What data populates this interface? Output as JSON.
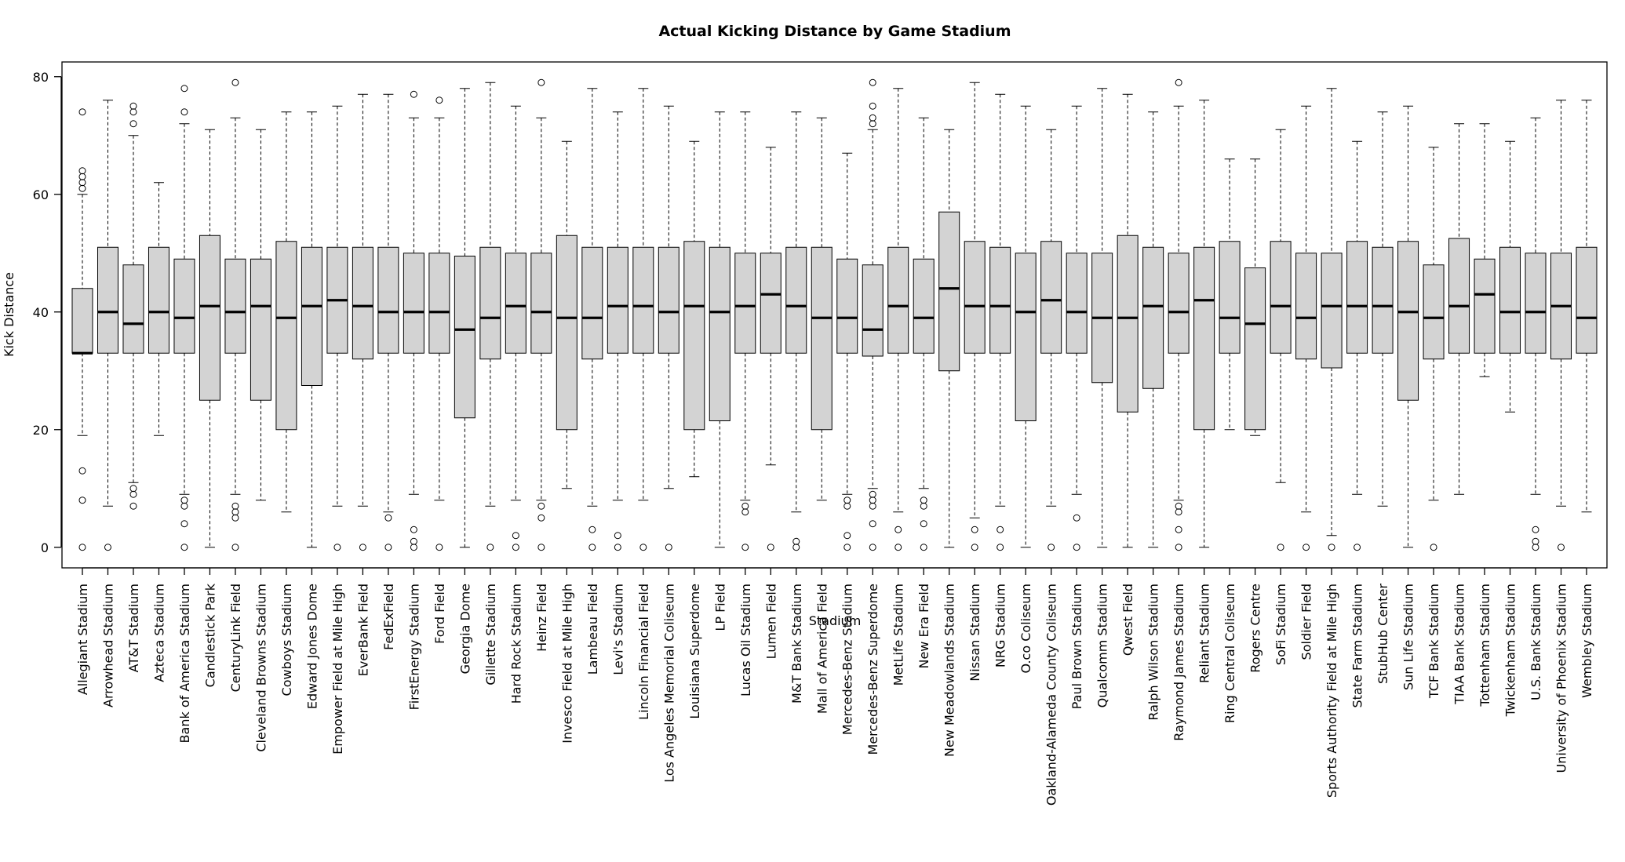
{
  "chart_data": {
    "type": "boxplot",
    "title": "Actual Kicking Distance by Game Stadium",
    "xlabel": "Stadium",
    "ylabel": "Kick Distance",
    "ylim": [
      -3.5,
      82.5
    ],
    "yticks": [
      0,
      20,
      40,
      60,
      80
    ],
    "grid": false,
    "box_fill": "#d3d3d3",
    "categories": [
      "Allegiant Stadium",
      "Arrowhead Stadium",
      "AT&T Stadium",
      "Azteca Stadium",
      "Bank of America Stadium",
      "Candlestick Park",
      "CenturyLink Field",
      "Cleveland Browns Stadium",
      "Cowboys Stadium",
      "Edward Jones Dome",
      "Empower Field at Mile High",
      "EverBank Field",
      "FedExField",
      "FirstEnergy Stadium",
      "Ford Field",
      "Georgia Dome",
      "Gillette Stadium",
      "Hard Rock Stadium",
      "Heinz Field",
      "Invesco Field at Mile High",
      "Lambeau Field",
      "Levi's Stadium",
      "Lincoln Financial Field",
      "Los Angeles Memorial Coliseum",
      "Louisiana Superdome",
      "LP Field",
      "Lucas Oil Stadium",
      "Lumen Field",
      "M&T Bank Stadium",
      "Mall of America Field",
      "Mercedes-Benz Stadium",
      "Mercedes-Benz Superdome",
      "MetLife Stadium",
      "New Era Field",
      "New Meadowlands Stadium",
      "Nissan Stadium",
      "NRG Stadium",
      "O.co Coliseum",
      "Oakland-Alameda County Coliseum",
      "Paul Brown Stadium",
      "Qualcomm Stadium",
      "Qwest Field",
      "Ralph Wilson Stadium",
      "Raymond James Stadium",
      "Reliant Stadium",
      "Ring Central Coliseum",
      "Rogers Centre",
      "SoFi Stadium",
      "Soldier Field",
      "Sports Authority Field at Mile High",
      "State Farm Stadium",
      "StubHub Center",
      "Sun Life Stadium",
      "TCF Bank Stadium",
      "TIAA Bank Stadium",
      "Tottenham Stadium",
      "Twickenham Stadium",
      "U.S. Bank Stadium",
      "University of Phoenix Stadium",
      "Wembley Stadium"
    ],
    "boxes": [
      {
        "lw": 19,
        "q1": 33,
        "med": 33,
        "q3": 44,
        "uw": 60,
        "out": [
          0,
          8,
          13,
          61,
          62,
          63,
          64,
          74
        ]
      },
      {
        "lw": 7,
        "q1": 33,
        "med": 40,
        "q3": 51,
        "uw": 76,
        "out": [
          0
        ]
      },
      {
        "lw": 11,
        "q1": 33,
        "med": 38,
        "q3": 48,
        "uw": 70,
        "out": [
          7,
          9,
          10,
          72,
          74,
          75
        ]
      },
      {
        "lw": 19,
        "q1": 33,
        "med": 40,
        "q3": 51,
        "uw": 62,
        "out": []
      },
      {
        "lw": 9,
        "q1": 33,
        "med": 39,
        "q3": 49,
        "uw": 72,
        "out": [
          0,
          4,
          7,
          8,
          74,
          78
        ]
      },
      {
        "lw": 0,
        "q1": 25,
        "med": 41,
        "q3": 53,
        "uw": 71,
        "out": []
      },
      {
        "lw": 9,
        "q1": 33,
        "med": 40,
        "q3": 49,
        "uw": 73,
        "out": [
          0,
          5,
          6,
          7,
          79
        ]
      },
      {
        "lw": 8,
        "q1": 25,
        "med": 41,
        "q3": 49,
        "uw": 71,
        "out": []
      },
      {
        "lw": 6,
        "q1": 20,
        "med": 39,
        "q3": 52,
        "uw": 74,
        "out": []
      },
      {
        "lw": 0,
        "q1": 27.5,
        "med": 41,
        "q3": 51,
        "uw": 74,
        "out": []
      },
      {
        "lw": 7,
        "q1": 33,
        "med": 42,
        "q3": 51,
        "uw": 75,
        "out": [
          0
        ]
      },
      {
        "lw": 7,
        "q1": 32,
        "med": 41,
        "q3": 51,
        "uw": 77,
        "out": [
          0
        ]
      },
      {
        "lw": 6,
        "q1": 33,
        "med": 40,
        "q3": 51,
        "uw": 77,
        "out": [
          0,
          5
        ]
      },
      {
        "lw": 9,
        "q1": 33,
        "med": 40,
        "q3": 50,
        "uw": 73,
        "out": [
          0,
          1,
          3,
          77
        ]
      },
      {
        "lw": 8,
        "q1": 33,
        "med": 40,
        "q3": 50,
        "uw": 73,
        "out": [
          0,
          76
        ]
      },
      {
        "lw": 0,
        "q1": 22,
        "med": 37,
        "q3": 49.5,
        "uw": 78,
        "out": []
      },
      {
        "lw": 7,
        "q1": 32,
        "med": 39,
        "q3": 51,
        "uw": 79,
        "out": [
          0
        ]
      },
      {
        "lw": 8,
        "q1": 33,
        "med": 41,
        "q3": 50,
        "uw": 75,
        "out": [
          0,
          2
        ]
      },
      {
        "lw": 8,
        "q1": 33,
        "med": 40,
        "q3": 50,
        "uw": 73,
        "out": [
          0,
          5,
          7,
          79
        ]
      },
      {
        "lw": 10,
        "q1": 20,
        "med": 39,
        "q3": 53,
        "uw": 69,
        "out": []
      },
      {
        "lw": 7,
        "q1": 32,
        "med": 39,
        "q3": 51,
        "uw": 78,
        "out": [
          0,
          3
        ]
      },
      {
        "lw": 8,
        "q1": 33,
        "med": 41,
        "q3": 51,
        "uw": 74,
        "out": [
          0,
          2
        ]
      },
      {
        "lw": 8,
        "q1": 33,
        "med": 41,
        "q3": 51,
        "uw": 78,
        "out": [
          0
        ]
      },
      {
        "lw": 10,
        "q1": 33,
        "med": 40,
        "q3": 51,
        "uw": 75,
        "out": [
          0
        ]
      },
      {
        "lw": 12,
        "q1": 20,
        "med": 41,
        "q3": 52,
        "uw": 69,
        "out": []
      },
      {
        "lw": 0,
        "q1": 21.5,
        "med": 40,
        "q3": 51,
        "uw": 74,
        "out": []
      },
      {
        "lw": 8,
        "q1": 33,
        "med": 41,
        "q3": 50,
        "uw": 74,
        "out": [
          0,
          6,
          7
        ]
      },
      {
        "lw": 14,
        "q1": 33,
        "med": 43,
        "q3": 50,
        "uw": 68,
        "out": [
          0
        ]
      },
      {
        "lw": 6,
        "q1": 33,
        "med": 41,
        "q3": 51,
        "uw": 74,
        "out": [
          0,
          1
        ]
      },
      {
        "lw": 8,
        "q1": 20,
        "med": 39,
        "q3": 51,
        "uw": 73,
        "out": []
      },
      {
        "lw": 9,
        "q1": 33,
        "med": 39,
        "q3": 49,
        "uw": 67,
        "out": [
          0,
          2,
          7,
          8
        ]
      },
      {
        "lw": 10,
        "q1": 32.5,
        "med": 37,
        "q3": 48,
        "uw": 71,
        "out": [
          0,
          4,
          7,
          8,
          9,
          72,
          73,
          75,
          79
        ]
      },
      {
        "lw": 6,
        "q1": 33,
        "med": 41,
        "q3": 51,
        "uw": 78,
        "out": [
          0,
          3
        ]
      },
      {
        "lw": 10,
        "q1": 33,
        "med": 39,
        "q3": 49,
        "uw": 73,
        "out": [
          0,
          4,
          7,
          8
        ]
      },
      {
        "lw": 0,
        "q1": 30,
        "med": 44,
        "q3": 57,
        "uw": 71,
        "out": []
      },
      {
        "lw": 5,
        "q1": 33,
        "med": 41,
        "q3": 52,
        "uw": 79,
        "out": [
          0,
          3
        ]
      },
      {
        "lw": 7,
        "q1": 33,
        "med": 41,
        "q3": 51,
        "uw": 77,
        "out": [
          0,
          3
        ]
      },
      {
        "lw": 0,
        "q1": 21.5,
        "med": 40,
        "q3": 50,
        "uw": 75,
        "out": []
      },
      {
        "lw": 7,
        "q1": 33,
        "med": 42,
        "q3": 52,
        "uw": 71,
        "out": [
          0
        ]
      },
      {
        "lw": 9,
        "q1": 33,
        "med": 40,
        "q3": 50,
        "uw": 75,
        "out": [
          0,
          5
        ]
      },
      {
        "lw": 0,
        "q1": 28,
        "med": 39,
        "q3": 50,
        "uw": 78,
        "out": []
      },
      {
        "lw": 0,
        "q1": 23,
        "med": 39,
        "q3": 53,
        "uw": 77,
        "out": []
      },
      {
        "lw": 0,
        "q1": 27,
        "med": 41,
        "q3": 51,
        "uw": 74,
        "out": []
      },
      {
        "lw": 8,
        "q1": 33,
        "med": 40,
        "q3": 50,
        "uw": 75,
        "out": [
          0,
          3,
          6,
          7,
          79
        ]
      },
      {
        "lw": 0,
        "q1": 20,
        "med": 42,
        "q3": 51,
        "uw": 76,
        "out": []
      },
      {
        "lw": 20,
        "q1": 33,
        "med": 39,
        "q3": 52,
        "uw": 66,
        "out": []
      },
      {
        "lw": 19,
        "q1": 20,
        "med": 38,
        "q3": 47.5,
        "uw": 66,
        "out": []
      },
      {
        "lw": 11,
        "q1": 33,
        "med": 41,
        "q3": 52,
        "uw": 71,
        "out": [
          0
        ]
      },
      {
        "lw": 6,
        "q1": 32,
        "med": 39,
        "q3": 50,
        "uw": 75,
        "out": [
          0
        ]
      },
      {
        "lw": 2,
        "q1": 30.5,
        "med": 41,
        "q3": 50,
        "uw": 78,
        "out": [
          0
        ]
      },
      {
        "lw": 9,
        "q1": 33,
        "med": 41,
        "q3": 52,
        "uw": 69,
        "out": [
          0
        ]
      },
      {
        "lw": 7,
        "q1": 33,
        "med": 41,
        "q3": 51,
        "uw": 74,
        "out": []
      },
      {
        "lw": 0,
        "q1": 25,
        "med": 40,
        "q3": 52,
        "uw": 75,
        "out": []
      },
      {
        "lw": 8,
        "q1": 32,
        "med": 39,
        "q3": 48,
        "uw": 68,
        "out": [
          0
        ]
      },
      {
        "lw": 9,
        "q1": 33,
        "med": 41,
        "q3": 52.5,
        "uw": 72,
        "out": []
      },
      {
        "lw": 29,
        "q1": 33,
        "med": 43,
        "q3": 49,
        "uw": 72,
        "out": []
      },
      {
        "lw": 23,
        "q1": 33,
        "med": 40,
        "q3": 51,
        "uw": 69,
        "out": []
      },
      {
        "lw": 9,
        "q1": 33,
        "med": 40,
        "q3": 50,
        "uw": 73,
        "out": [
          0,
          1,
          3
        ]
      },
      {
        "lw": 7,
        "q1": 32,
        "med": 41,
        "q3": 50,
        "uw": 76,
        "out": [
          0
        ]
      },
      {
        "lw": 6,
        "q1": 33,
        "med": 39,
        "q3": 51,
        "uw": 76,
        "out": []
      }
    ]
  }
}
